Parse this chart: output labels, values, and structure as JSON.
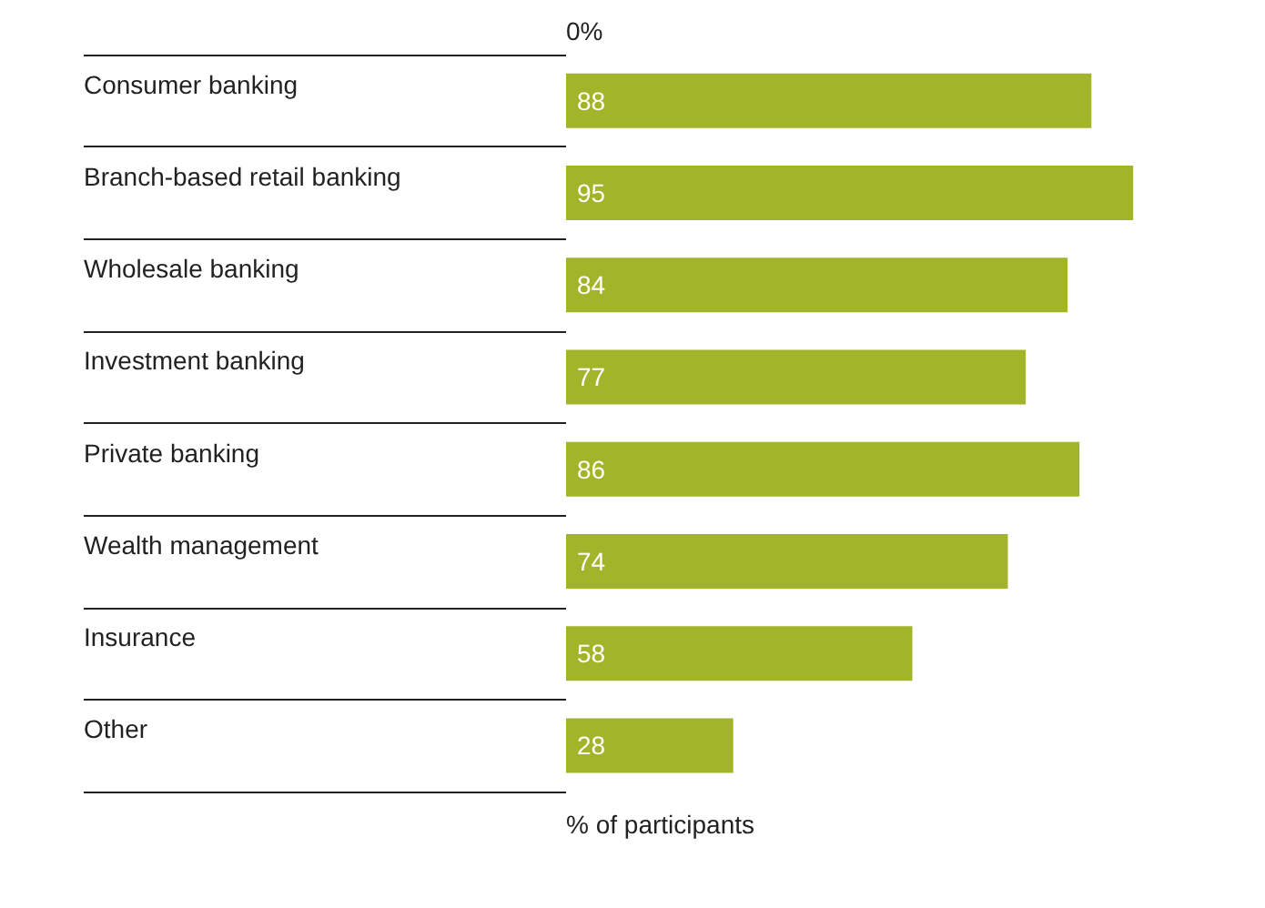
{
  "chart_data": {
    "type": "bar",
    "orientation": "horizontal",
    "xlabel": "% of participants",
    "categories": [
      "Consumer banking",
      "Branch-based retail banking",
      "Wholesale banking",
      "Investment banking",
      "Private banking",
      "Wealth management",
      "Insurance",
      "Other"
    ],
    "values": [
      88,
      95,
      84,
      77,
      86,
      74,
      58,
      28
    ],
    "color": "#a2b52a",
    "annotations": [
      "0%"
    ],
    "data_labels": true
  }
}
